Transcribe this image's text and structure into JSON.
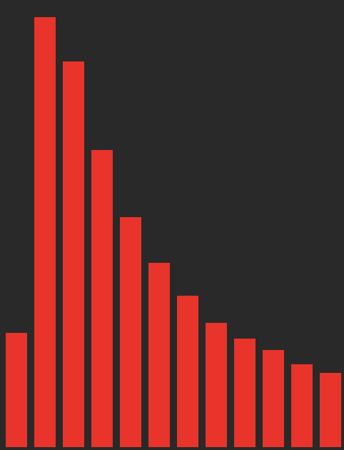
{
  "chart_data": {
    "type": "bar",
    "values": [
      160,
      602,
      540,
      416,
      322,
      258,
      212,
      174,
      152,
      136,
      116,
      104
    ],
    "ylim": [
      0,
      606
    ],
    "bar_color": "#e8342a",
    "background_color": "#292929",
    "grid": false,
    "legend": "none"
  }
}
